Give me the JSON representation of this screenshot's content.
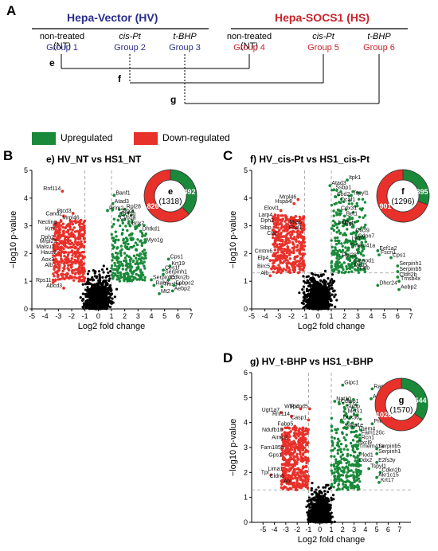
{
  "panel_a": {
    "letter": "A",
    "hv_title": "Hepa-Vector (HV)",
    "hs_title": "Hepa-SOCS1 (HS)",
    "groups": [
      {
        "condition": "non-treated (NT)",
        "name": "Group 1",
        "side": "hv"
      },
      {
        "condition": "cis-Pt",
        "name": "Group 2",
        "side": "hv"
      },
      {
        "condition": "t-BHP",
        "name": "Group 3",
        "side": "hv"
      },
      {
        "condition": "non-treated (NT)",
        "name": "Group 4",
        "side": "hs"
      },
      {
        "condition": "cis-Pt",
        "name": "Group 5",
        "side": "hs"
      },
      {
        "condition": "t-BHP",
        "name": "Group 6",
        "side": "hs"
      }
    ],
    "comparisons": [
      "e",
      "f",
      "g"
    ]
  },
  "legend": {
    "up_label": "Upregulated",
    "down_label": "Down-regulated",
    "up_color": "#1a8a3a",
    "down_color": "#e8312a"
  },
  "chart_data": [
    {
      "panel": "B",
      "title": "e) HV_NT vs HS1_NT",
      "type": "scatter",
      "xlabel": "Log2 fold change",
      "ylabel": "−log10 p-value",
      "xlim": [
        -5,
        7
      ],
      "ylim": [
        0,
        5
      ],
      "xticks": [
        -5,
        -4,
        -3,
        -2,
        -1,
        0,
        1,
        2,
        3,
        4,
        5,
        6,
        7
      ],
      "yticks": [
        0,
        1,
        2,
        3,
        4,
        5
      ],
      "threshold_fc": [
        -1,
        1
      ],
      "donut": {
        "letter": "e",
        "total": "(1318)",
        "up": 492,
        "down": 826
      },
      "labels": [
        {
          "text": "Rnf114",
          "x": -2.7,
          "y": 4.25,
          "side": "left"
        },
        {
          "text": "Banf1",
          "x": 1.2,
          "y": 4.1,
          "side": "right"
        },
        {
          "text": "Atad3",
          "x": 1.1,
          "y": 3.8,
          "side": "right"
        },
        {
          "text": "Rpl28",
          "x": 2.0,
          "y": 3.6,
          "side": "right"
        },
        {
          "text": "Prim2",
          "x": 0.7,
          "y": 3.55,
          "side": "right"
        },
        {
          "text": "Ptcd3",
          "x": -1.9,
          "y": 3.45,
          "side": "left"
        },
        {
          "text": "Cand2",
          "x": -2.6,
          "y": 3.35,
          "side": "left"
        },
        {
          "text": "Dtx3",
          "x": 1.7,
          "y": 3.45,
          "side": "right"
        },
        {
          "text": "Eef1g",
          "x": 1.6,
          "y": 3.35,
          "side": "right"
        },
        {
          "text": "Cyb5a",
          "x": 1.5,
          "y": 3.2,
          "side": "right"
        },
        {
          "text": "Mrpl46",
          "x": -1.3,
          "y": 3.2,
          "side": "left"
        },
        {
          "text": "Necting",
          "x": -3.0,
          "y": 3.05,
          "side": "left"
        },
        {
          "text": "Brix2",
          "x": 2.4,
          "y": 3.0,
          "side": "right"
        },
        {
          "text": "Krt7",
          "x": -3.1,
          "y": 2.8,
          "side": "left"
        },
        {
          "text": "Dhtkd1",
          "x": 3.2,
          "y": 2.8,
          "side": "right"
        },
        {
          "text": "Dph2",
          "x": -3.2,
          "y": 2.5,
          "side": "left"
        },
        {
          "text": "Mrpl23",
          "x": -3.0,
          "y": 2.35,
          "side": "left"
        },
        {
          "text": "Myo1g",
          "x": 3.5,
          "y": 2.4,
          "side": "right"
        },
        {
          "text": "Malsu1",
          "x": -3.2,
          "y": 2.15,
          "side": "left"
        },
        {
          "text": "Haus2",
          "x": -3.0,
          "y": 1.95,
          "side": "left"
        },
        {
          "text": "Cps1",
          "x": 5.3,
          "y": 1.8,
          "side": "right"
        },
        {
          "text": "Aox3",
          "x": -3.2,
          "y": 1.7,
          "side": "left"
        },
        {
          "text": "Krt19",
          "x": 5.4,
          "y": 1.55,
          "side": "right"
        },
        {
          "text": "Alb",
          "x": -3.3,
          "y": 1.5,
          "side": "left"
        },
        {
          "text": "Ces1f",
          "x": 4.9,
          "y": 1.4,
          "side": "right"
        },
        {
          "text": "Serpinh1",
          "x": 4.9,
          "y": 1.25,
          "side": "right"
        },
        {
          "text": "Serpinb5",
          "x": 4.0,
          "y": 1.05,
          "side": "right"
        },
        {
          "text": "Cdkn2b",
          "x": 5.3,
          "y": 1.05,
          "side": "right"
        },
        {
          "text": "Rps11",
          "x": -3.4,
          "y": 0.95,
          "side": "left"
        },
        {
          "text": "Rab3",
          "x": 4.2,
          "y": 0.85,
          "side": "right"
        },
        {
          "text": "Tmsb4",
          "x": 4.8,
          "y": 0.8,
          "side": "right"
        },
        {
          "text": "Fabpc2",
          "x": 5.7,
          "y": 0.85,
          "side": "right"
        },
        {
          "text": "Abcd3",
          "x": -2.6,
          "y": 0.75,
          "side": "left"
        },
        {
          "text": "Aebp2",
          "x": 5.6,
          "y": 0.65,
          "side": "right"
        },
        {
          "text": "Mt2",
          "x": 4.6,
          "y": 0.55,
          "side": "right"
        }
      ]
    },
    {
      "panel": "C",
      "title": "f) HV_cis-Pt vs HS1_cis-Pt",
      "type": "scatter",
      "xlabel": "Log2 fold change",
      "ylabel": "−log10 p-value",
      "xlim": [
        -5,
        7
      ],
      "ylim": [
        0,
        5
      ],
      "xticks": [
        -5,
        -4,
        -3,
        -2,
        -1,
        0,
        1,
        2,
        3,
        4,
        5,
        6,
        7
      ],
      "yticks": [
        0,
        1,
        2,
        3,
        4,
        5
      ],
      "threshold_fc": [
        -1,
        1
      ],
      "threshold_p": 1.3,
      "donut": {
        "letter": "f",
        "total": "(1296)",
        "up": 395,
        "down": 901
      },
      "labels": [
        {
          "text": "Itpk1",
          "x": 2.2,
          "y": 4.65,
          "side": "right"
        },
        {
          "text": "Atad3",
          "x": 0.9,
          "y": 4.45,
          "side": "right"
        },
        {
          "text": "Ssbp1",
          "x": 1.2,
          "y": 4.3,
          "side": "right"
        },
        {
          "text": "Tspyl1",
          "x": 2.5,
          "y": 4.1,
          "side": "right"
        },
        {
          "text": "Mrpl46",
          "x": -1.5,
          "y": 3.95,
          "side": "left"
        },
        {
          "text": "Sod2",
          "x": 1.3,
          "y": 4.05,
          "side": "right"
        },
        {
          "text": "Hspa4l",
          "x": -1.8,
          "y": 3.8,
          "side": "left"
        },
        {
          "text": "Dcaf1",
          "x": 1.6,
          "y": 3.85,
          "side": "right"
        },
        {
          "text": "Elovl1",
          "x": -2.8,
          "y": 3.55,
          "side": "left"
        },
        {
          "text": "Cdx31",
          "x": 1.6,
          "y": 3.55,
          "side": "right"
        },
        {
          "text": "Larp4",
          "x": -3.3,
          "y": 3.3,
          "side": "left"
        },
        {
          "text": "Bet1",
          "x": 2.0,
          "y": 3.35,
          "side": "right"
        },
        {
          "text": "Dph2",
          "x": -3.2,
          "y": 3.1,
          "side": "left"
        },
        {
          "text": "Mtap",
          "x": -1.1,
          "y": 3.05,
          "side": "left"
        },
        {
          "text": "Lig3",
          "x": 1.4,
          "y": 3.05,
          "side": "right"
        },
        {
          "text": "Egfr",
          "x": 1.9,
          "y": 3.0,
          "side": "right"
        },
        {
          "text": "Stbp",
          "x": -3.4,
          "y": 2.85,
          "side": "left"
        },
        {
          "text": "Ehd1",
          "x": -1.1,
          "y": 2.85,
          "side": "left"
        },
        {
          "text": "Cxcl9",
          "x": 2.7,
          "y": 2.75,
          "side": "right"
        },
        {
          "text": "Ctsl",
          "x": -3.0,
          "y": 2.65,
          "side": "left"
        },
        {
          "text": "Cdon7",
          "x": 2.9,
          "y": 2.55,
          "side": "right"
        },
        {
          "text": "Lym7",
          "x": 2.4,
          "y": 2.45,
          "side": "right"
        },
        {
          "text": "Tmem41a",
          "x": 2.3,
          "y": 2.2,
          "side": "right"
        },
        {
          "text": "Eef1a2",
          "x": 4.5,
          "y": 2.1,
          "side": "right"
        },
        {
          "text": "Cmtm6",
          "x": -3.3,
          "y": 2.0,
          "side": "left"
        },
        {
          "text": "Fscn1",
          "x": 4.6,
          "y": 1.95,
          "side": "right"
        },
        {
          "text": "Cps1",
          "x": 5.5,
          "y": 1.85,
          "side": "right"
        },
        {
          "text": "Rpl28",
          "x": 1.7,
          "y": 1.85,
          "side": "right"
        },
        {
          "text": "Elp4",
          "x": -3.6,
          "y": 1.75,
          "side": "left"
        },
        {
          "text": "Slsnod1",
          "x": 2.6,
          "y": 1.65,
          "side": "right"
        },
        {
          "text": "Serpinh1",
          "x": 6.0,
          "y": 1.55,
          "side": "right"
        },
        {
          "text": "Mlsl5",
          "x": 2.6,
          "y": 1.5,
          "side": "right"
        },
        {
          "text": "Birc5",
          "x": -3.5,
          "y": 1.45,
          "side": "left"
        },
        {
          "text": "Ceb",
          "x": 3.0,
          "y": 1.4,
          "side": "right"
        },
        {
          "text": "Serpinb5",
          "x": 6.0,
          "y": 1.35,
          "side": "right"
        },
        {
          "text": "Alb",
          "x": -3.6,
          "y": 1.2,
          "side": "left"
        },
        {
          "text": "Cldn2b",
          "x": 6.0,
          "y": 1.15,
          "side": "right"
        },
        {
          "text": "Tmsb4x",
          "x": 6.1,
          "y": 1.0,
          "side": "right"
        },
        {
          "text": "Dhcr24",
          "x": 4.5,
          "y": 0.85,
          "side": "right"
        },
        {
          "text": "Aebp2",
          "x": 6.1,
          "y": 0.7,
          "side": "right"
        }
      ]
    },
    {
      "panel": "D",
      "title": "g) HV_t-BHP vs HS1_t-BHP",
      "type": "scatter",
      "xlabel": "Log2 fold change",
      "ylabel": "−log10 p-value",
      "xlim": [
        -6,
        8
      ],
      "ylim": [
        0,
        6
      ],
      "xticks": [
        -5,
        -4,
        -3,
        -2,
        -1,
        0,
        1,
        2,
        3,
        4,
        5,
        6,
        7
      ],
      "yticks": [
        0,
        1,
        2,
        3,
        4,
        5,
        6
      ],
      "threshold_fc": [
        -1,
        1
      ],
      "threshold_p": 1.3,
      "donut": {
        "letter": "g",
        "total": "(1570)",
        "up": 544,
        "down": 1026
      },
      "labels": [
        {
          "text": "Gipc1",
          "x": 2.0,
          "y": 5.5,
          "side": "right"
        },
        {
          "text": "Rap2c",
          "x": 4.6,
          "y": 5.35,
          "side": "right"
        },
        {
          "text": "Adar",
          "x": 4.5,
          "y": 4.95,
          "side": "right"
        },
        {
          "text": "Nat10",
          "x": 1.3,
          "y": 4.85,
          "side": "right"
        },
        {
          "text": "Cdtpp1",
          "x": 1.7,
          "y": 4.75,
          "side": "right"
        },
        {
          "text": "Wbp4",
          "x": -1.7,
          "y": 4.55,
          "side": "left"
        },
        {
          "text": "Psmd5",
          "x": -0.9,
          "y": 4.55,
          "side": "left"
        },
        {
          "text": "Strbp",
          "x": 2.2,
          "y": 4.55,
          "side": "right"
        },
        {
          "text": "Ugt1a7",
          "x": -3.4,
          "y": 4.4,
          "side": "left"
        },
        {
          "text": "Mcts1",
          "x": 2.3,
          "y": 4.35,
          "side": "right"
        },
        {
          "text": "Rnf114",
          "x": -2.5,
          "y": 4.25,
          "side": "left"
        },
        {
          "text": "Casp1",
          "x": -1.0,
          "y": 4.1,
          "side": "left"
        },
        {
          "text": "Dhx36",
          "x": 1.9,
          "y": 4.1,
          "side": "right"
        },
        {
          "text": "Prkdc",
          "x": 4.6,
          "y": 3.95,
          "side": "right"
        },
        {
          "text": "Fabp5",
          "x": -2.2,
          "y": 3.85,
          "side": "left"
        },
        {
          "text": "Myo1e",
          "x": 2.2,
          "y": 3.8,
          "side": "right"
        },
        {
          "text": "Ndufb10",
          "x": -3.1,
          "y": 3.6,
          "side": "left"
        },
        {
          "text": "Them4",
          "x": 3.2,
          "y": 3.65,
          "side": "right"
        },
        {
          "text": "Fam120c",
          "x": 3.5,
          "y": 3.5,
          "side": "right"
        },
        {
          "text": "Aimp2",
          "x": -2.7,
          "y": 3.3,
          "side": "left"
        },
        {
          "text": "Rcn1",
          "x": 3.5,
          "y": 3.3,
          "side": "right"
        },
        {
          "text": "Cxcl9",
          "x": 3.2,
          "y": 3.1,
          "side": "right"
        },
        {
          "text": "Tmem41a",
          "x": 3.3,
          "y": 2.95,
          "side": "right"
        },
        {
          "text": "Serpinb5",
          "x": 5.0,
          "y": 2.95,
          "side": "right"
        },
        {
          "text": "Fam185a",
          "x": -3.0,
          "y": 2.9,
          "side": "left"
        },
        {
          "text": "Serpinh1",
          "x": 5.0,
          "y": 2.75,
          "side": "right"
        },
        {
          "text": "Gps1",
          "x": -3.2,
          "y": 2.6,
          "side": "left"
        },
        {
          "text": "Plod1",
          "x": 3.3,
          "y": 2.6,
          "side": "right"
        },
        {
          "text": "Ddx2",
          "x": 3.3,
          "y": 2.4,
          "side": "right"
        },
        {
          "text": "E2fs3y",
          "x": 5.0,
          "y": 2.4,
          "side": "right"
        },
        {
          "text": "Tspyl1",
          "x": 4.3,
          "y": 2.15,
          "side": "right"
        },
        {
          "text": "Lima1",
          "x": -3.1,
          "y": 2.05,
          "side": "left"
        },
        {
          "text": "Cdkn2b",
          "x": 5.3,
          "y": 2.0,
          "side": "right"
        },
        {
          "text": "Akr1c15",
          "x": 5.0,
          "y": 1.8,
          "side": "right"
        },
        {
          "text": "Tpr",
          "x": -4.3,
          "y": 1.9,
          "side": "left"
        },
        {
          "text": "Cldn3",
          "x": -3.0,
          "y": 1.75,
          "side": "left"
        },
        {
          "text": "Krt17",
          "x": 5.2,
          "y": 1.6,
          "side": "right"
        },
        {
          "text": "Abr",
          "x": -2.3,
          "y": 1.55,
          "side": "left"
        }
      ]
    }
  ]
}
